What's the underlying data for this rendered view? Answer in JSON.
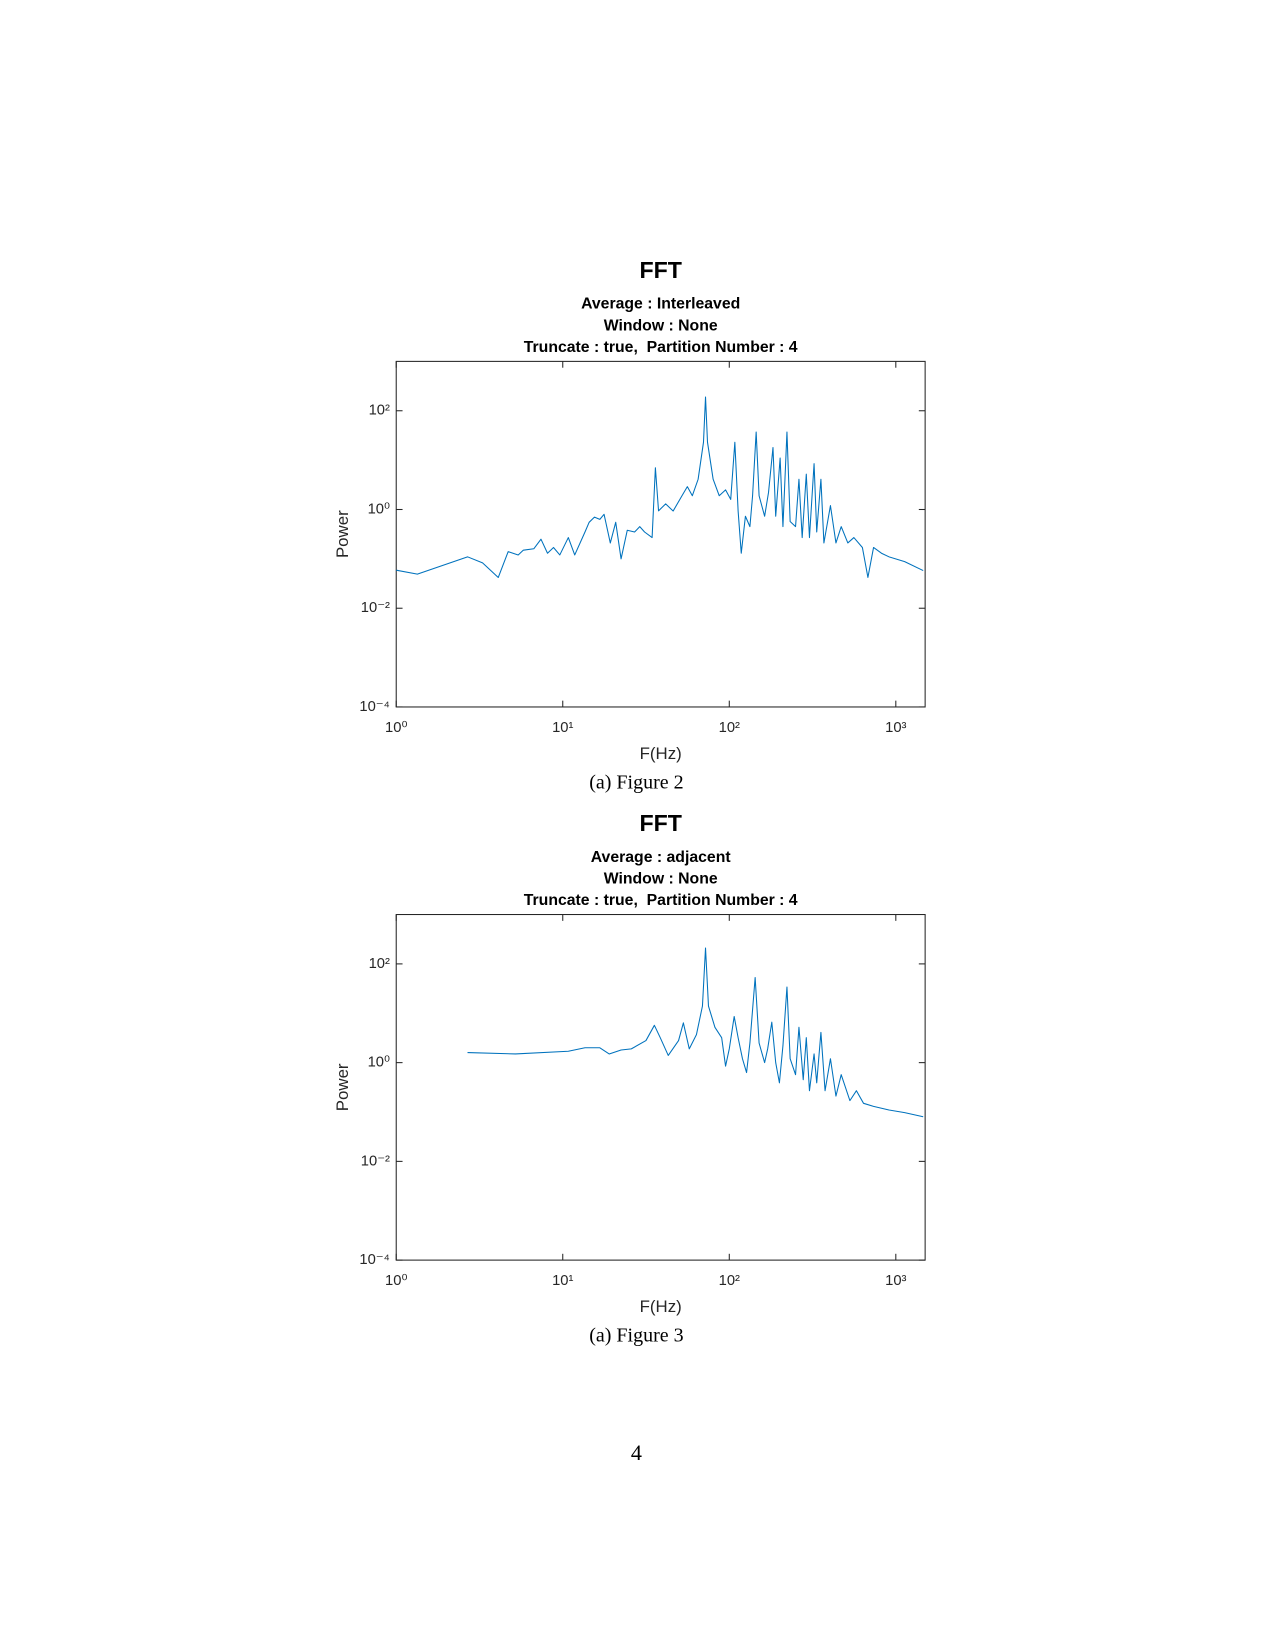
{
  "chart_data": [
    {
      "type": "line",
      "title": "FFT",
      "subtitle": [
        "Average : Interleaved",
        "Window : None",
        "Truncate : true,  Partition Number : 4"
      ],
      "xlabel": "F(Hz)",
      "ylabel": "Power",
      "caption": "(a) Figure 2",
      "xscale": "log",
      "yscale": "log",
      "xlim": [
        1,
        1500
      ],
      "ylim": [
        0.0001,
        1000
      ],
      "xticks": [
        {
          "value": 1,
          "label": "10⁰"
        },
        {
          "value": 10,
          "label": "10¹"
        },
        {
          "value": 100,
          "label": "10²"
        },
        {
          "value": 1000,
          "label": "10³"
        }
      ],
      "yticks": [
        {
          "value": 0.0001,
          "label": "10⁻⁴"
        },
        {
          "value": 0.01,
          "label": "10⁻²"
        },
        {
          "value": 1,
          "label": "10⁰"
        },
        {
          "value": 100,
          "label": "10²"
        }
      ],
      "x": [
        1,
        1.34,
        2.68,
        3.3,
        4.1,
        4.7,
        5.4,
        5.8,
        6.7,
        7.4,
        8.1,
        8.8,
        9.6,
        10.8,
        11.8,
        13.6,
        14.4,
        15.5,
        16.7,
        17.7,
        19.3,
        20.8,
        22.4,
        24.4,
        27,
        29,
        31,
        34.4,
        36,
        37.6,
        41.5,
        46,
        52,
        56,
        60,
        65,
        70,
        72,
        74,
        80,
        87,
        95,
        102,
        108,
        113,
        118,
        125,
        133,
        138,
        145,
        151,
        163,
        172,
        183,
        190,
        202,
        210,
        222,
        232,
        250,
        262,
        274,
        290,
        303,
        323,
        335,
        355,
        370,
        405,
        437,
        470,
        515,
        560,
        630,
        680,
        735,
        820,
        910,
        1130,
        1460
      ],
      "series": [
        {
          "color": "#0072bd",
          "values": [
            0.059,
            0.049,
            0.11,
            0.083,
            0.042,
            0.14,
            0.12,
            0.15,
            0.16,
            0.25,
            0.13,
            0.17,
            0.12,
            0.27,
            0.12,
            0.35,
            0.55,
            0.7,
            0.63,
            0.8,
            0.21,
            0.55,
            0.1,
            0.38,
            0.35,
            0.45,
            0.35,
            0.27,
            7,
            0.94,
            1.3,
            0.93,
            1.9,
            2.9,
            1.9,
            4.1,
            23,
            190,
            23,
            4.1,
            1.9,
            2.5,
            1.6,
            23,
            0.93,
            0.13,
            0.73,
            0.45,
            1.9,
            37,
            1.9,
            0.73,
            2.2,
            18,
            0.73,
            11,
            0.45,
            37,
            0.57,
            0.45,
            4.1,
            0.27,
            5.2,
            0.27,
            8.5,
            0.35,
            4.1,
            0.21,
            1.2,
            0.21,
            0.45,
            0.21,
            0.27,
            0.17,
            0.042,
            0.17,
            0.13,
            0.11,
            0.088,
            0.058
          ]
        }
      ]
    },
    {
      "type": "line",
      "title": "FFT",
      "subtitle": [
        "Average : adjacent",
        "Window : None",
        "Truncate : true,  Partition Number : 4"
      ],
      "xlabel": "F(Hz)",
      "ylabel": "Power",
      "caption": "(a) Figure 3",
      "xscale": "log",
      "yscale": "log",
      "xlim": [
        1,
        1500
      ],
      "ylim": [
        0.0001,
        1000
      ],
      "xticks": [
        {
          "value": 1,
          "label": "10⁰"
        },
        {
          "value": 10,
          "label": "10¹"
        },
        {
          "value": 100,
          "label": "10²"
        },
        {
          "value": 1000,
          "label": "10³"
        }
      ],
      "yticks": [
        {
          "value": 0.0001,
          "label": "10⁻⁴"
        },
        {
          "value": 0.01,
          "label": "10⁻²"
        },
        {
          "value": 1,
          "label": "10⁰"
        },
        {
          "value": 100,
          "label": "10²"
        }
      ],
      "x": [
        2.68,
        5.2,
        10.8,
        13.6,
        16.7,
        19,
        22.4,
        25.8,
        31.6,
        35.5,
        38.5,
        43,
        49.6,
        53,
        57.5,
        63.5,
        69,
        72,
        75,
        82,
        90,
        95,
        100,
        107,
        113,
        120,
        127,
        133,
        143,
        151,
        163,
        170,
        180,
        190,
        200,
        210,
        222,
        232,
        250,
        262,
        278,
        290,
        303,
        323,
        335,
        355,
        376,
        405,
        437,
        470,
        530,
        580,
        640,
        735,
        910,
        1130,
        1460
      ],
      "series": [
        {
          "color": "#0072bd",
          "values": [
            1.6,
            1.5,
            1.7,
            2.0,
            2.0,
            1.5,
            1.8,
            1.9,
            2.8,
            5.7,
            3.2,
            1.4,
            2.8,
            6.4,
            1.9,
            3.7,
            14,
            210,
            14,
            5.2,
            3.2,
            0.85,
            1.9,
            8.6,
            3.2,
            1.2,
            0.63,
            2.5,
            53,
            2.5,
            1.0,
            1.9,
            6.6,
            1.0,
            0.39,
            2.2,
            34,
            1.2,
            0.57,
            5.2,
            0.45,
            3.2,
            0.27,
            1.5,
            0.39,
            4.1,
            0.27,
            1.2,
            0.21,
            0.57,
            0.17,
            0.27,
            0.15,
            0.13,
            0.11,
            0.097,
            0.08
          ]
        }
      ]
    }
  ],
  "page_number": "4"
}
